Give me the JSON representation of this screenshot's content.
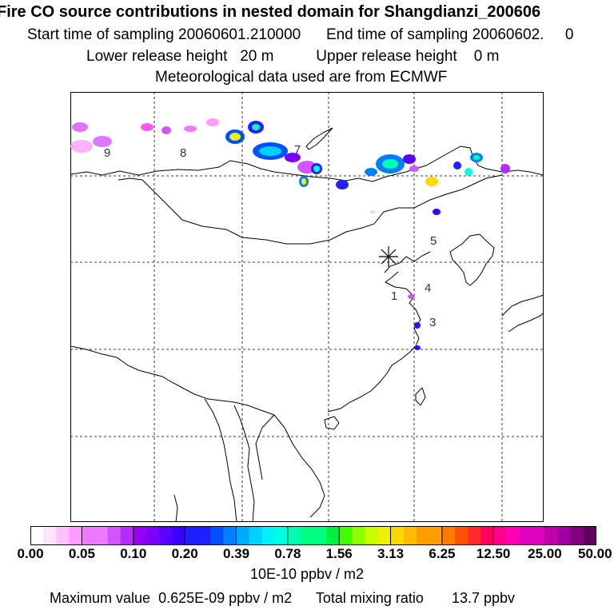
{
  "header": {
    "title": "Fire CO source contributions in nested domain for Shangdianzi_200606",
    "sampling_start_label": "Start time of sampling",
    "sampling_start": "20060601.210000",
    "sampling_end_label": "End time of sampling",
    "sampling_end": "20060602.",
    "sampling_end_suffix": "0",
    "lower_height_label": "Lower release height",
    "lower_height": "20 m",
    "upper_height_label": "Upper release height",
    "upper_height": "0 m",
    "met_data": "Meteorological data used are from ECMWF"
  },
  "map": {
    "station_marker": "asterisk-station-icon",
    "region_labels": [
      "1",
      "3",
      "4",
      "5",
      "7",
      "8",
      "9"
    ]
  },
  "colorbar": {
    "tick_labels": [
      "0.00",
      "0.05",
      "0.10",
      "0.20",
      "0.39",
      "0.78",
      "1.56",
      "3.13",
      "6.25",
      "12.50",
      "25.00",
      "50.00"
    ],
    "colors": [
      "#ffffff",
      "#ffe4ff",
      "#ffc2ff",
      "#ff9cff",
      "#ee7aff",
      "#d455ff",
      "#b52cff",
      "#9400f0",
      "#7c00ff",
      "#5a00ff",
      "#3a00ff",
      "#1e20ff",
      "#0050ff",
      "#0080ff",
      "#00aaff",
      "#00d2ff",
      "#00f2ff",
      "#00ffe0",
      "#00ffb0",
      "#00ff80",
      "#00f040",
      "#40ff00",
      "#8cff00",
      "#c8ff00",
      "#f0f000",
      "#ffd800",
      "#ffbc00",
      "#ff9c00",
      "#ff7a00",
      "#ff5000",
      "#ff2a2a",
      "#ff0060",
      "#ff0090",
      "#ff00b4",
      "#e000c0",
      "#c000b0",
      "#a000a0",
      "#800080",
      "#600060"
    ]
  },
  "units_label": "10E-10 ppbv / m2",
  "footer": {
    "max_label": "Maximum value",
    "max_value": "0.625E-09 ppbv / m2",
    "total_label": "Total mixing ratio",
    "total_value": "13.7 ppbv"
  }
}
